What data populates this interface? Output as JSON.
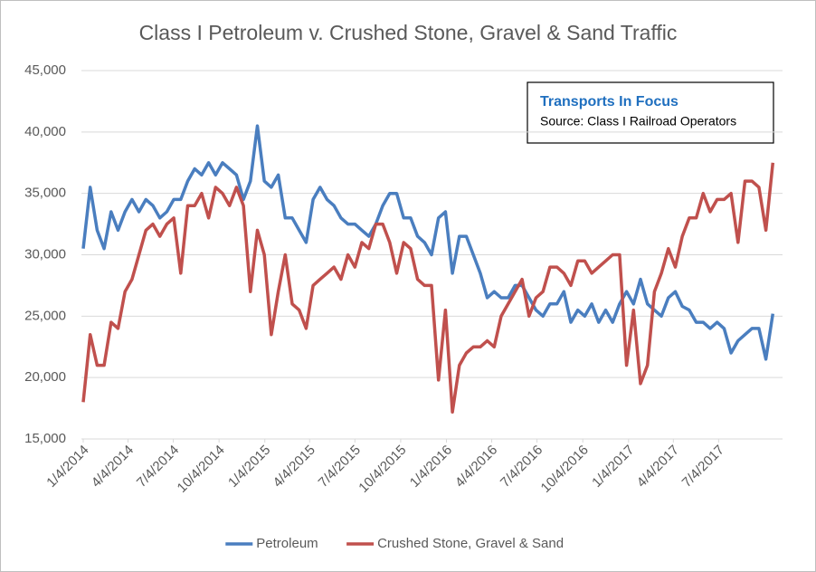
{
  "chart_data": {
    "type": "line",
    "title": "Class I Petroleum v. Crushed Stone, Gravel & Sand Traffic",
    "annotations": [
      "Transports  In Focus",
      "Source: Class I Railroad Operators"
    ],
    "x": [
      "2014-01-04",
      "2014-01-18",
      "2014-02-01",
      "2014-02-15",
      "2014-03-01",
      "2014-03-15",
      "2014-03-29",
      "2014-04-12",
      "2014-04-26",
      "2014-05-10",
      "2014-05-24",
      "2014-06-07",
      "2014-06-21",
      "2014-07-05",
      "2014-07-19",
      "2014-08-02",
      "2014-08-16",
      "2014-08-30",
      "2014-09-13",
      "2014-09-27",
      "2014-10-11",
      "2014-10-25",
      "2014-11-08",
      "2014-11-22",
      "2014-12-06",
      "2014-12-20",
      "2015-01-03",
      "2015-01-17",
      "2015-01-31",
      "2015-02-14",
      "2015-02-28",
      "2015-03-14",
      "2015-03-28",
      "2015-04-11",
      "2015-04-25",
      "2015-05-09",
      "2015-05-23",
      "2015-06-06",
      "2015-06-20",
      "2015-07-04",
      "2015-07-18",
      "2015-08-01",
      "2015-08-15",
      "2015-08-29",
      "2015-09-12",
      "2015-09-26",
      "2015-10-10",
      "2015-10-24",
      "2015-11-07",
      "2015-11-21",
      "2015-12-05",
      "2015-12-19",
      "2016-01-02",
      "2016-01-16",
      "2016-01-30",
      "2016-02-13",
      "2016-02-27",
      "2016-03-12",
      "2016-03-26",
      "2016-04-09",
      "2016-04-23",
      "2016-05-07",
      "2016-05-21",
      "2016-06-04",
      "2016-06-18",
      "2016-07-02",
      "2016-07-16",
      "2016-07-30",
      "2016-08-13",
      "2016-08-27",
      "2016-09-10",
      "2016-09-24",
      "2016-10-08",
      "2016-10-22",
      "2016-11-05",
      "2016-11-19",
      "2016-12-03",
      "2016-12-17",
      "2016-12-31",
      "2017-01-14",
      "2017-01-28",
      "2017-02-11",
      "2017-02-25",
      "2017-03-11",
      "2017-03-25",
      "2017-04-08",
      "2017-04-22",
      "2017-05-06",
      "2017-05-20",
      "2017-06-03",
      "2017-06-17",
      "2017-07-01",
      "2017-07-15",
      "2017-07-29",
      "2017-08-12",
      "2017-08-26",
      "2017-09-09",
      "2017-09-23",
      "2017-10-07",
      "2017-10-21"
    ],
    "series": [
      {
        "name": "Petroleum",
        "color": "#4a7ebf",
        "values": [
          30500,
          35500,
          32000,
          30500,
          33500,
          32000,
          33500,
          34500,
          33500,
          34500,
          34000,
          33000,
          33500,
          34500,
          34500,
          36000,
          37000,
          36500,
          37500,
          36500,
          37500,
          37000,
          36500,
          34500,
          36000,
          40500,
          36000,
          35500,
          36500,
          33000,
          33000,
          32000,
          31000,
          34500,
          35500,
          34500,
          34000,
          33000,
          32500,
          32500,
          32000,
          31500,
          32500,
          34000,
          35000,
          35000,
          33000,
          33000,
          31500,
          31000,
          30000,
          33000,
          33500,
          28500,
          31500,
          31500,
          30000,
          28500,
          26500,
          27000,
          26500,
          26500,
          27500,
          27500,
          26500,
          25500,
          25000,
          26000,
          26000,
          27000,
          24500,
          25500,
          25000,
          26000,
          24500,
          25500,
          24500,
          26000,
          27000,
          26000,
          28000,
          26000,
          25500,
          25000,
          26500,
          27000,
          25800,
          25500,
          24500,
          24500,
          24000,
          24500,
          24000,
          22000,
          23000,
          23500,
          24000,
          24000,
          21500,
          25200
        ]
      },
      {
        "name": "Crushed Stone, Gravel & Sand",
        "color": "#c0504d",
        "values": [
          18000,
          23500,
          21000,
          21000,
          24500,
          24000,
          27000,
          28000,
          30000,
          32000,
          32500,
          31500,
          32500,
          33000,
          28500,
          34000,
          34000,
          35000,
          33000,
          35500,
          35000,
          34000,
          35500,
          34000,
          27000,
          32000,
          30000,
          23500,
          27000,
          30000,
          26000,
          25500,
          24000,
          27500,
          28000,
          28500,
          29000,
          28000,
          30000,
          29000,
          31000,
          30500,
          32500,
          32500,
          31000,
          28500,
          31000,
          30500,
          28000,
          27500,
          27500,
          19800,
          25500,
          17200,
          21000,
          22000,
          22500,
          22500,
          23000,
          22500,
          25000,
          26000,
          27000,
          28000,
          25000,
          26500,
          27000,
          29000,
          29000,
          28500,
          27500,
          29500,
          29500,
          28500,
          29000,
          29500,
          30000,
          30000,
          21000,
          25500,
          19500,
          21000,
          27000,
          28500,
          30500,
          29000,
          31500,
          33000,
          33000,
          35000,
          33500,
          34500,
          34500,
          35000,
          31000,
          36000,
          36000,
          35500,
          32000,
          37500
        ]
      }
    ],
    "xlim": [
      "2014-01-04",
      "2017-11-04"
    ],
    "xticks": [
      {
        "value": "2014-01-04",
        "label": "1/4/2014"
      },
      {
        "value": "2014-04-04",
        "label": "4/4/2014"
      },
      {
        "value": "2014-07-04",
        "label": "7/4/2014"
      },
      {
        "value": "2014-10-04",
        "label": "10/4/2014"
      },
      {
        "value": "2015-01-04",
        "label": "1/4/2015"
      },
      {
        "value": "2015-04-04",
        "label": "4/4/2015"
      },
      {
        "value": "2015-07-04",
        "label": "7/4/2015"
      },
      {
        "value": "2015-10-04",
        "label": "10/4/2015"
      },
      {
        "value": "2016-01-04",
        "label": "1/4/2016"
      },
      {
        "value": "2016-04-04",
        "label": "4/4/2016"
      },
      {
        "value": "2016-07-04",
        "label": "7/4/2016"
      },
      {
        "value": "2016-10-04",
        "label": "10/4/2016"
      },
      {
        "value": "2017-01-04",
        "label": "1/4/2017"
      },
      {
        "value": "2017-04-04",
        "label": "4/4/2017"
      },
      {
        "value": "2017-07-04",
        "label": "7/4/2017"
      }
    ],
    "ylim": [
      15000,
      45000
    ],
    "yticks": [
      {
        "value": 15000,
        "label": "15,000"
      },
      {
        "value": 20000,
        "label": "20,000"
      },
      {
        "value": 25000,
        "label": "25,000"
      },
      {
        "value": 30000,
        "label": "30,000"
      },
      {
        "value": 35000,
        "label": "35,000"
      },
      {
        "value": 40000,
        "label": "40,000"
      },
      {
        "value": 45000,
        "label": "45,000"
      }
    ],
    "grid": true,
    "legend": "bottom"
  }
}
